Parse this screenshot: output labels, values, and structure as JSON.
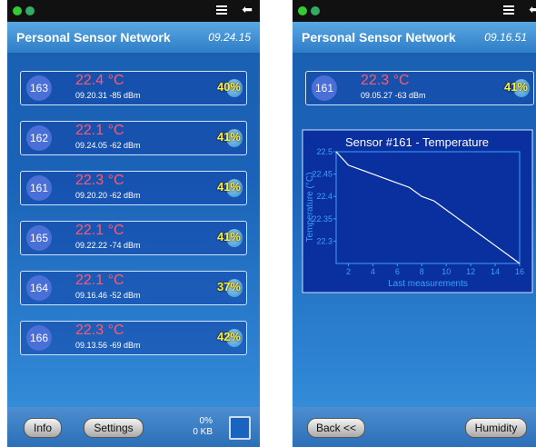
{
  "left": {
    "header": {
      "title": "Personal Sensor Network",
      "time": "09.24.15"
    },
    "sensors": [
      {
        "id": "163",
        "temperature": "22.4 °C",
        "info": "09.20.31 -85 dBm",
        "humidity": "40%"
      },
      {
        "id": "162",
        "temperature": "22.1 °C",
        "info": "09.24.05 -62 dBm",
        "humidity": "41%"
      },
      {
        "id": "161",
        "temperature": "22.3 °C",
        "info": "09.20.20 -62 dBm",
        "humidity": "41%"
      },
      {
        "id": "165",
        "temperature": "22.1 °C",
        "info": "09.22.22 -74 dBm",
        "humidity": "41%"
      },
      {
        "id": "164",
        "temperature": "22.1 °C",
        "info": "09.16.46 -52 dBm",
        "humidity": "37%"
      },
      {
        "id": "166",
        "temperature": "22.3 °C",
        "info": "09.13.56 -69 dBm",
        "humidity": "42%"
      }
    ],
    "footer": {
      "buttons": [
        "Info",
        "Settings"
      ],
      "storage_percent": "0%",
      "storage_size": "0 KB"
    }
  },
  "right": {
    "header": {
      "title": "Personal Sensor Network",
      "time": "09.16.51"
    },
    "sensor": {
      "id": "161",
      "temperature": "22.3 °C",
      "info": "09.05.27 -63 dBm",
      "humidity": "41%"
    },
    "chart": {
      "type": "line",
      "title": "Sensor #161 - Temperature",
      "x_label": "Last measurements",
      "y_label": "Temperature (°C)",
      "x": [
        1,
        2,
        3,
        4,
        5,
        6,
        7,
        8,
        9,
        10,
        11,
        12,
        13,
        14,
        15,
        16
      ],
      "values": [
        22.5,
        22.47,
        22.46,
        22.45,
        22.44,
        22.43,
        22.42,
        22.4,
        22.39,
        22.37,
        22.35,
        22.33,
        22.31,
        22.29,
        22.27,
        22.25
      ],
      "color": "#ffffff",
      "xlim": [
        1,
        16
      ],
      "ylim": [
        22.25,
        22.5
      ],
      "xticks": [
        2,
        4,
        6,
        8,
        10,
        12,
        14,
        16
      ],
      "yticks": [
        22.3,
        22.35,
        22.4,
        22.45,
        22.5
      ]
    },
    "footer": {
      "buttons": [
        "Back <<",
        "Humidity"
      ]
    }
  }
}
